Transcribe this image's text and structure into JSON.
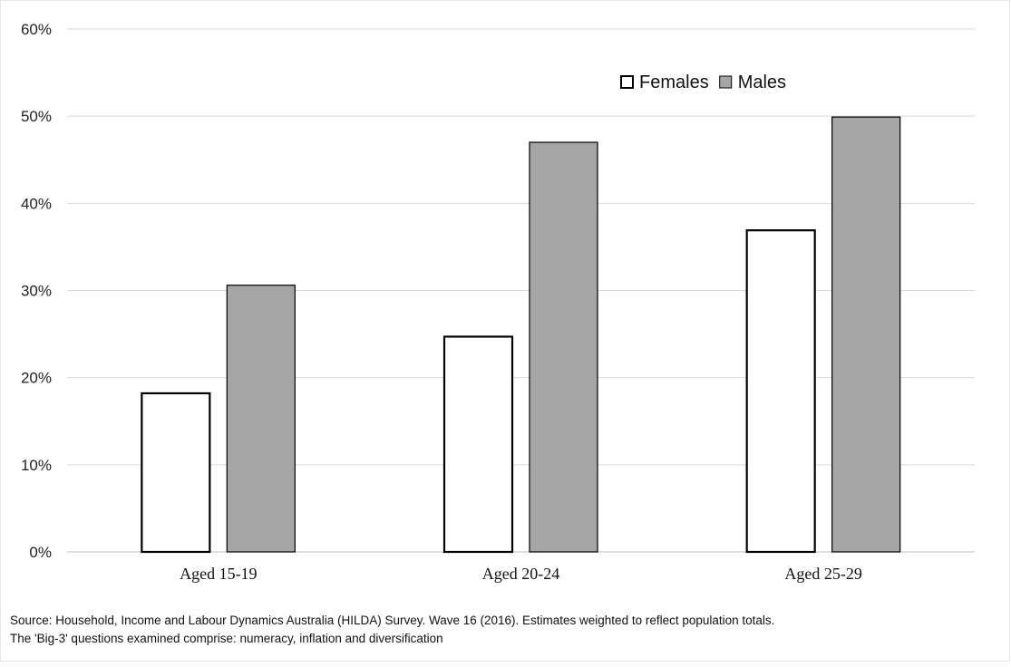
{
  "chart_data": {
    "type": "bar",
    "categories": [
      "Aged 15-19",
      "Aged 20-24",
      "Aged 25-29"
    ],
    "series": [
      {
        "name": "Females",
        "values": [
          18.2,
          24.7,
          36.9
        ],
        "color": "#ffffff"
      },
      {
        "name": "Males",
        "values": [
          30.6,
          47.0,
          49.9
        ],
        "color": "#a6a6a6"
      }
    ],
    "y_ticks": [
      "0%",
      "10%",
      "20%",
      "30%",
      "40%",
      "50%",
      "60%"
    ],
    "ylim": [
      0,
      60
    ],
    "grid": true,
    "legend_position": "top-right",
    "title": "",
    "xlabel": "",
    "ylabel": ""
  },
  "footnotes": [
    "Source: Household, Income and Labour Dynamics Australia (HILDA) Survey. Wave 16 (2016).  Estimates weighted to reflect population totals.",
    "The 'Big-3' questions examined comprise: numeracy, inflation and diversification"
  ]
}
